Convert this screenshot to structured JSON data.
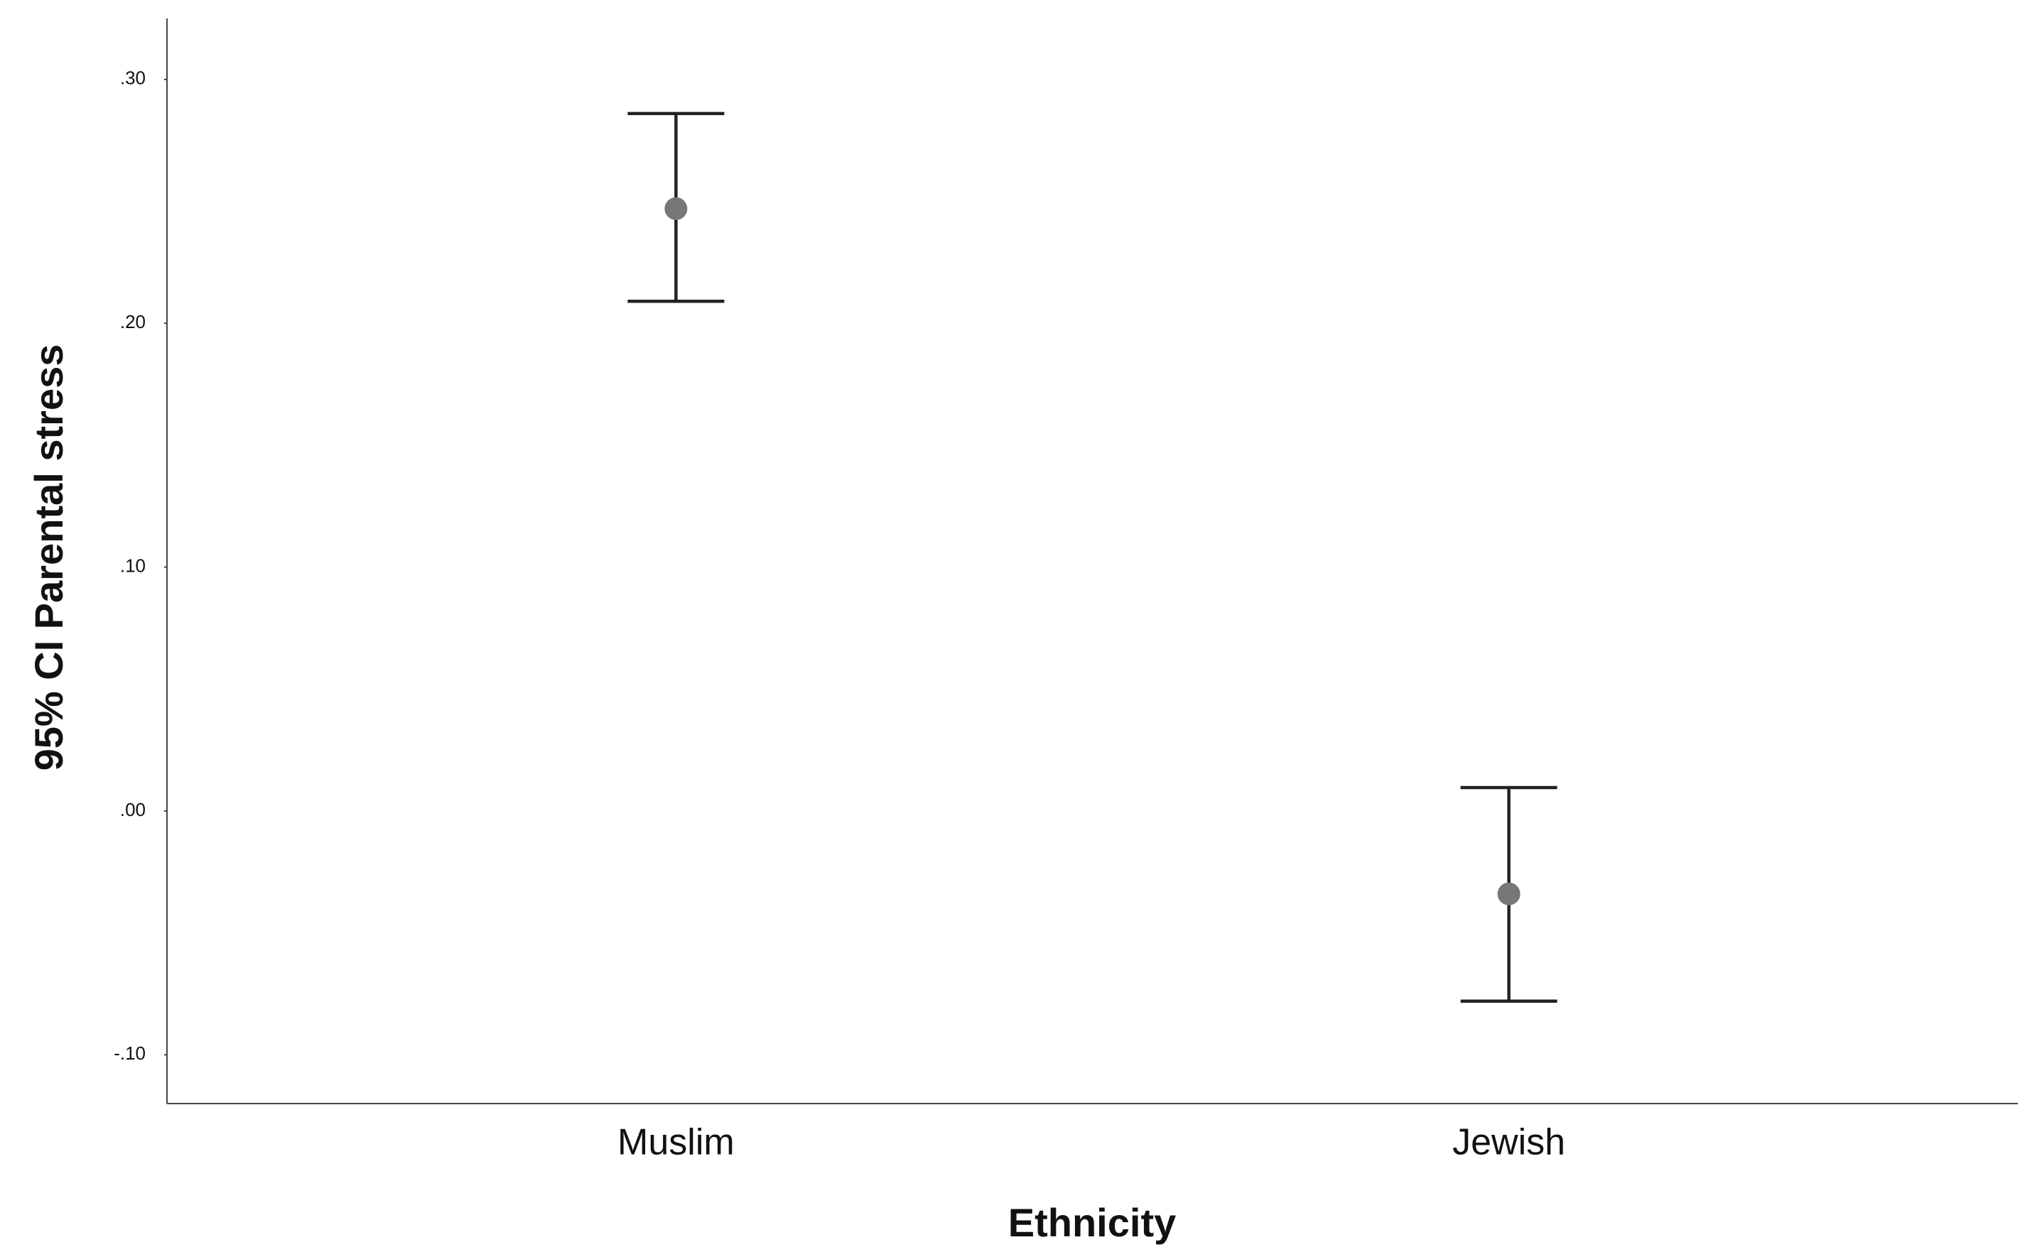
{
  "chart_data": {
    "type": "errorbar",
    "x_label": "Ethnicity",
    "y_label": "95% CI Parental stress",
    "categories": [
      "Muslim",
      "Jewish"
    ],
    "values": [
      0.247,
      -0.034
    ],
    "ci_lower": [
      0.209,
      -0.078
    ],
    "ci_upper": [
      0.286,
      0.0096
    ],
    "point_color": "#777777",
    "bar_color": "#222222",
    "ylim": [
      -0.12,
      0.325
    ],
    "yticks": [
      {
        "value": -0.1,
        "label": "-.10"
      },
      {
        "value": 0,
        "label": ".00"
      },
      {
        "value": 0.1,
        "label": ".10"
      },
      {
        "value": 0.2,
        "label": ".20"
      },
      {
        "value": 0.3,
        "label": ".30"
      }
    ],
    "grid": false
  }
}
